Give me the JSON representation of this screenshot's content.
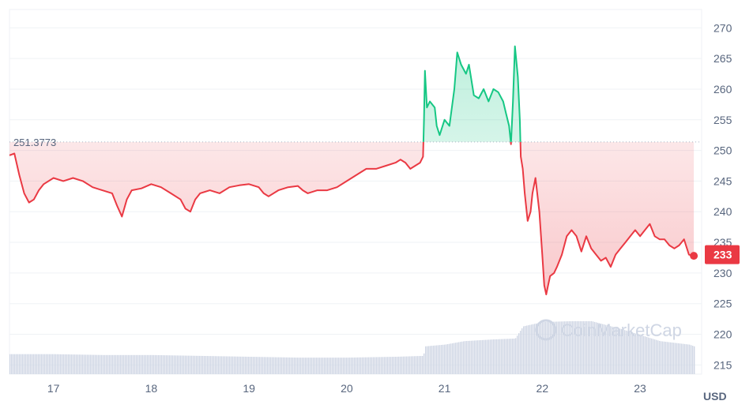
{
  "chart_data": {
    "type": "line",
    "currency": "USD",
    "reference_value_label": "251.3773",
    "reference_value": 251.3773,
    "current_price_label": "233",
    "current_price": 233,
    "watermark": "CoinMarketCap",
    "x_ticks": [
      "17",
      "18",
      "19",
      "20",
      "21",
      "22",
      "23"
    ],
    "y_ticks": [
      "270",
      "265",
      "260",
      "255",
      "250",
      "245",
      "240",
      "235",
      "230",
      "225",
      "220",
      "215"
    ],
    "ylim": [
      213.5,
      273
    ],
    "xlim_days": [
      16.55,
      23.63
    ],
    "grid": "horizontal",
    "price_series": {
      "name": "Price",
      "points": [
        [
          16.55,
          249.2
        ],
        [
          16.6,
          249.5
        ],
        [
          16.65,
          246
        ],
        [
          16.7,
          243
        ],
        [
          16.75,
          241.5
        ],
        [
          16.8,
          242
        ],
        [
          16.85,
          243.5
        ],
        [
          16.9,
          244.5
        ],
        [
          17.0,
          245.5
        ],
        [
          17.1,
          245
        ],
        [
          17.2,
          245.5
        ],
        [
          17.3,
          245
        ],
        [
          17.4,
          244
        ],
        [
          17.5,
          243.5
        ],
        [
          17.6,
          243
        ],
        [
          17.65,
          241
        ],
        [
          17.7,
          239.2
        ],
        [
          17.75,
          242
        ],
        [
          17.8,
          243.5
        ],
        [
          17.9,
          243.8
        ],
        [
          18.0,
          244.5
        ],
        [
          18.1,
          244
        ],
        [
          18.2,
          243
        ],
        [
          18.3,
          242
        ],
        [
          18.35,
          240.5
        ],
        [
          18.4,
          240
        ],
        [
          18.45,
          242
        ],
        [
          18.5,
          243
        ],
        [
          18.6,
          243.5
        ],
        [
          18.7,
          243
        ],
        [
          18.8,
          244
        ],
        [
          18.9,
          244.3
        ],
        [
          19.0,
          244.5
        ],
        [
          19.1,
          244
        ],
        [
          19.15,
          243
        ],
        [
          19.2,
          242.5
        ],
        [
          19.3,
          243.5
        ],
        [
          19.4,
          244
        ],
        [
          19.5,
          244.2
        ],
        [
          19.55,
          243.5
        ],
        [
          19.6,
          243
        ],
        [
          19.7,
          243.5
        ],
        [
          19.8,
          243.5
        ],
        [
          19.9,
          244
        ],
        [
          20.0,
          245
        ],
        [
          20.1,
          246
        ],
        [
          20.2,
          247
        ],
        [
          20.3,
          247
        ],
        [
          20.4,
          247.5
        ],
        [
          20.5,
          248
        ],
        [
          20.55,
          248.5
        ],
        [
          20.6,
          248
        ],
        [
          20.65,
          247
        ],
        [
          20.7,
          247.5
        ],
        [
          20.75,
          248
        ],
        [
          20.78,
          249
        ],
        [
          20.79,
          255
        ],
        [
          20.8,
          263
        ],
        [
          20.82,
          257
        ],
        [
          20.85,
          258
        ],
        [
          20.9,
          257
        ],
        [
          20.92,
          254
        ],
        [
          20.95,
          252.5
        ],
        [
          21.0,
          255
        ],
        [
          21.05,
          254
        ],
        [
          21.1,
          260
        ],
        [
          21.13,
          266
        ],
        [
          21.17,
          264
        ],
        [
          21.22,
          262.5
        ],
        [
          21.25,
          264
        ],
        [
          21.3,
          259
        ],
        [
          21.35,
          258.5
        ],
        [
          21.4,
          260
        ],
        [
          21.45,
          258
        ],
        [
          21.5,
          260
        ],
        [
          21.55,
          259.5
        ],
        [
          21.6,
          258
        ],
        [
          21.63,
          256
        ],
        [
          21.66,
          254
        ],
        [
          21.68,
          251
        ],
        [
          21.7,
          258
        ],
        [
          21.72,
          267
        ],
        [
          21.75,
          262
        ],
        [
          21.77,
          255
        ],
        [
          21.78,
          249
        ],
        [
          21.8,
          247
        ],
        [
          21.82,
          243
        ],
        [
          21.85,
          238.5
        ],
        [
          21.88,
          240
        ],
        [
          21.9,
          243
        ],
        [
          21.93,
          245.5
        ],
        [
          21.97,
          240
        ],
        [
          22.0,
          233
        ],
        [
          22.02,
          228
        ],
        [
          22.04,
          226.5
        ],
        [
          22.06,
          228
        ],
        [
          22.08,
          229.5
        ],
        [
          22.12,
          230
        ],
        [
          22.15,
          231
        ],
        [
          22.2,
          233
        ],
        [
          22.25,
          236
        ],
        [
          22.3,
          237
        ],
        [
          22.35,
          236
        ],
        [
          22.4,
          233.5
        ],
        [
          22.45,
          236
        ],
        [
          22.5,
          234
        ],
        [
          22.55,
          233
        ],
        [
          22.6,
          232
        ],
        [
          22.65,
          232.5
        ],
        [
          22.7,
          231
        ],
        [
          22.75,
          233
        ],
        [
          22.8,
          234
        ],
        [
          22.85,
          235
        ],
        [
          22.9,
          236
        ],
        [
          22.95,
          237
        ],
        [
          23.0,
          236
        ],
        [
          23.05,
          237
        ],
        [
          23.1,
          238
        ],
        [
          23.15,
          236
        ],
        [
          23.2,
          235.5
        ],
        [
          23.25,
          235.5
        ],
        [
          23.3,
          234.5
        ],
        [
          23.35,
          234
        ],
        [
          23.4,
          234.5
        ],
        [
          23.45,
          235.5
        ],
        [
          23.5,
          233
        ],
        [
          23.55,
          232.8
        ]
      ]
    },
    "volume_series": {
      "name": "Volume",
      "points": [
        [
          16.55,
          0.23
        ],
        [
          17.0,
          0.23
        ],
        [
          17.5,
          0.22
        ],
        [
          18.0,
          0.22
        ],
        [
          18.5,
          0.21
        ],
        [
          19.0,
          0.2
        ],
        [
          19.5,
          0.19
        ],
        [
          20.0,
          0.19
        ],
        [
          20.5,
          0.2
        ],
        [
          20.78,
          0.21
        ],
        [
          20.8,
          0.32
        ],
        [
          21.0,
          0.34
        ],
        [
          21.2,
          0.38
        ],
        [
          21.5,
          0.4
        ],
        [
          21.72,
          0.41
        ],
        [
          21.8,
          0.55
        ],
        [
          22.0,
          0.6
        ],
        [
          22.3,
          0.61
        ],
        [
          22.5,
          0.61
        ],
        [
          22.8,
          0.52
        ],
        [
          23.0,
          0.45
        ],
        [
          23.2,
          0.38
        ],
        [
          23.5,
          0.34
        ],
        [
          23.55,
          0.32
        ]
      ]
    },
    "colors": {
      "up": "#16c784",
      "down": "#ea3943",
      "volume": "#cfd6e4",
      "grid": "#eff2f5",
      "axis_text": "#58667e"
    }
  },
  "axis": {
    "currency_label": "USD"
  }
}
